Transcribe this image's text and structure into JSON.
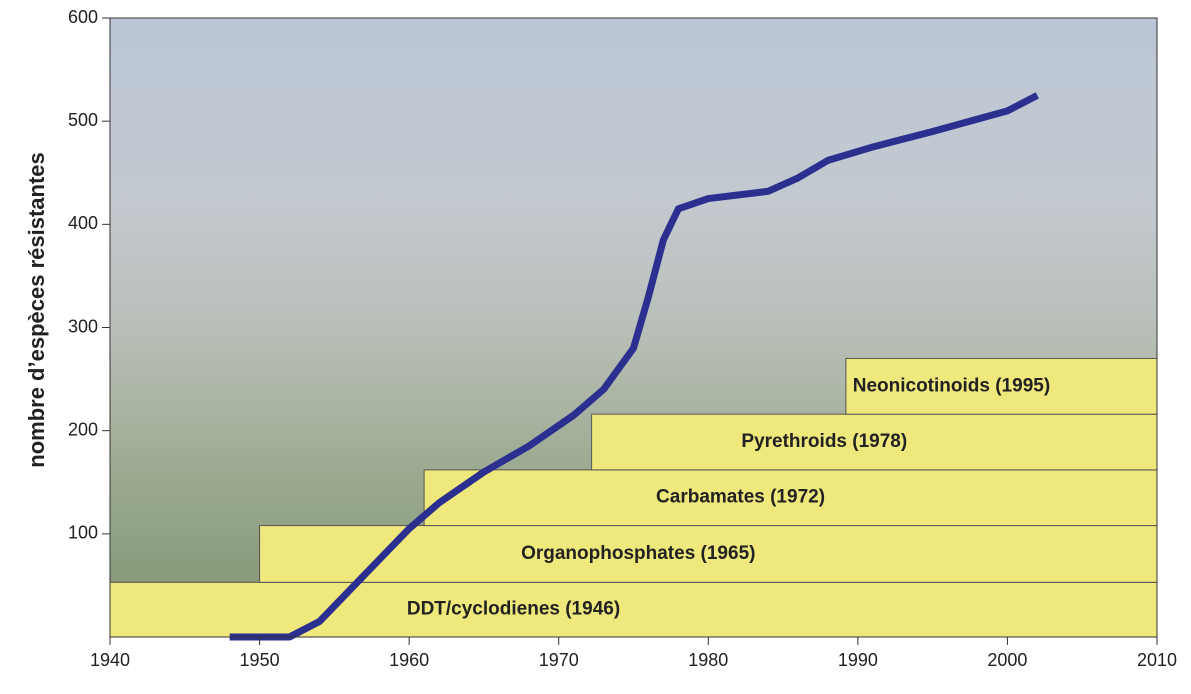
{
  "chart_data": {
    "type": "line",
    "ylabel": "nombre d’espèces résistantes",
    "x": [
      1948,
      1952,
      1954,
      1956,
      1958,
      1960,
      1962,
      1965,
      1968,
      1971,
      1973,
      1975,
      1976,
      1977,
      1978,
      1980,
      1984,
      1986,
      1988,
      1991,
      1995,
      2000,
      2002
    ],
    "series": [
      {
        "color": "#2b2f8f",
        "values": [
          0,
          0,
          15,
          45,
          75,
          105,
          130,
          160,
          185,
          215,
          240,
          280,
          330,
          385,
          415,
          425,
          432,
          445,
          462,
          475,
          490,
          510,
          525
        ]
      }
    ],
    "bars": [
      {
        "label": "DDT/cyclodienes (1946)",
        "start": 1940,
        "bottom": 0,
        "top": 53
      },
      {
        "label": "Organophosphates (1965)",
        "start": 1950,
        "bottom": 53,
        "top": 108
      },
      {
        "label": "Carbamates (1972)",
        "start": 1961,
        "bottom": 108,
        "top": 162
      },
      {
        "label": "Pyrethroids (1978)",
        "start": 1972.2,
        "bottom": 162,
        "top": 216
      },
      {
        "label": "Neonicotinoids (1995)",
        "start": 1989.2,
        "bottom": 216,
        "top": 270
      }
    ],
    "bar_color": "#efe87c",
    "xlim": [
      1940,
      2010
    ],
    "xticks": [
      1940,
      1950,
      1960,
      1970,
      1980,
      1990,
      2000,
      2010
    ],
    "ylim": [
      0,
      600
    ],
    "yticks": [
      100,
      200,
      300,
      400,
      500,
      600
    ]
  }
}
